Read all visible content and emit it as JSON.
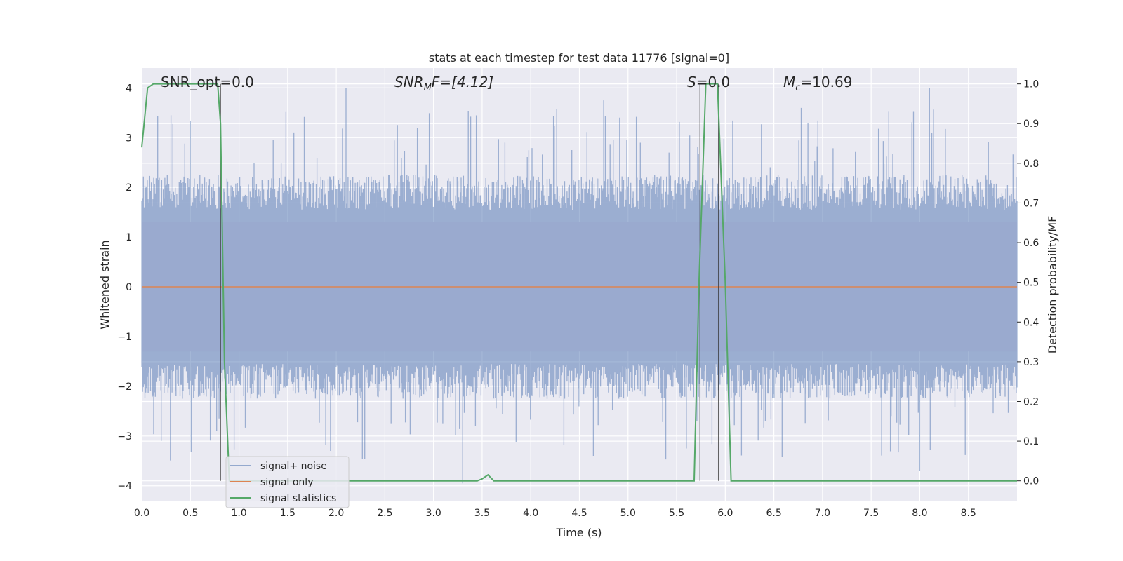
{
  "chart_data": {
    "type": "line",
    "title": "stats at each timestep for test data 11776 [signal=0]",
    "xlabel": "Time (s)",
    "ylabel_left": "Whitened strain",
    "ylabel_right": "Detection probability/MF",
    "xlim": [
      0,
      9
    ],
    "ylim_left": [
      -4.3,
      4.4
    ],
    "ylim_right": [
      -0.05,
      1.04
    ],
    "x_ticks": [
      "0.0",
      "0.5",
      "1.0",
      "1.5",
      "2.0",
      "2.5",
      "3.0",
      "3.5",
      "4.0",
      "4.5",
      "5.0",
      "5.5",
      "6.0",
      "6.5",
      "7.0",
      "7.5",
      "8.0",
      "8.5"
    ],
    "y_left_ticks": [
      "4",
      "3",
      "2",
      "1",
      "0",
      "−1",
      "−2",
      "−3",
      "−4"
    ],
    "y_right_ticks": [
      "1.0",
      "0.9",
      "0.8",
      "0.7",
      "0.6",
      "0.5",
      "0.4",
      "0.3",
      "0.2",
      "0.1",
      "0.0"
    ],
    "grid": true,
    "legend_position": "lower-left",
    "annotations": {
      "snr_opt": "SNR_opt=0.0",
      "snr_mf_base": "SNR",
      "snr_mf_sub": "M",
      "snr_mf_rest": "F=[4.12]",
      "s_italic": "S",
      "s_rest": "=0.0",
      "mc_base": "M",
      "mc_sub": "c",
      "mc_rest": "=10.69"
    },
    "series": [
      {
        "name": "signal+ noise",
        "color": "#4c72b0",
        "axis": "left",
        "description_values": "noise approx. uniform band in [-1.6, 1.6] with spikes up to 4.0 and down to -3.9"
      },
      {
        "name": "signal only",
        "color": "#dd8452",
        "axis": "left",
        "values_constant": 0.0
      },
      {
        "name": "signal statistics",
        "color": "#55a868",
        "axis": "right",
        "x": [
          0.0,
          0.06,
          0.12,
          0.5,
          0.78,
          0.81,
          0.85,
          0.9,
          0.95,
          3.45,
          3.5,
          3.56,
          3.62,
          5.68,
          5.73,
          5.8,
          5.92,
          6.0,
          6.06,
          9.0
        ],
        "y": [
          0.84,
          0.99,
          1.0,
          1.0,
          1.0,
          0.9,
          0.3,
          0.0,
          0.0,
          0.0,
          0.005,
          0.015,
          0.0,
          0.0,
          0.5,
          1.0,
          1.0,
          0.5,
          0.0,
          0.0
        ]
      }
    ],
    "vertical_lines_x": [
      0.81,
      5.74,
      5.93
    ]
  }
}
